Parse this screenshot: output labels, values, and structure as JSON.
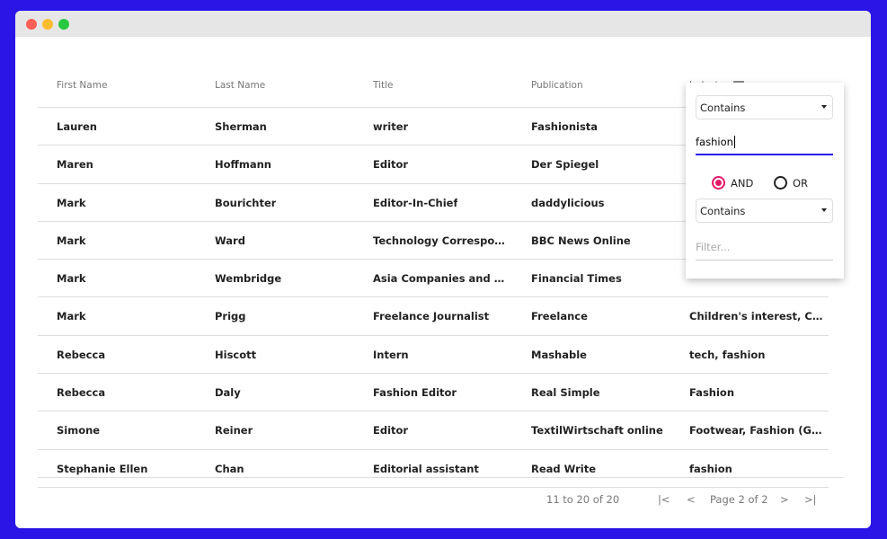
{
  "window": {
    "controls": [
      "close",
      "minimize",
      "maximize"
    ],
    "colors": {
      "close": "#fe5f57",
      "minimize": "#febc2e",
      "maximize": "#28c840"
    }
  },
  "columns": [
    "First Name",
    "Last Name",
    "Title",
    "Publication",
    "Industry"
  ],
  "rows": [
    [
      "Lauren",
      "Sherman",
      "writer",
      "Fashionista",
      ""
    ],
    [
      "Maren",
      "Hoffmann",
      "Editor",
      "Der Spiegel",
      ""
    ],
    [
      "Mark",
      "Bourichter",
      "Editor-In-Chief",
      "daddylicious",
      ""
    ],
    [
      "Mark",
      "Ward",
      "Technology Correspon...",
      "BBC News Online",
      ""
    ],
    [
      "Mark",
      "Wembridge",
      "Asia Companies and M...",
      "Financial Times",
      ""
    ],
    [
      "Mark",
      "Prigg",
      "Freelance Journalist",
      "Freelance",
      "Children's interest, Chil..."
    ],
    [
      "Rebecca",
      "Hiscott",
      "Intern",
      "Mashable",
      "tech, fashion"
    ],
    [
      "Rebecca",
      "Daly",
      "Fashion Editor",
      "Real Simple",
      "Fashion"
    ],
    [
      "Simone",
      "Reiner",
      "Editor",
      "TextilWirtschaft online",
      "Footwear, Fashion (Ge..."
    ],
    [
      "Stephanie Ellen",
      "Chan",
      "Editorial assistant",
      "Read Write",
      "fashion"
    ]
  ],
  "filter": {
    "condition1": "Contains",
    "value1": "fashion",
    "and_label": "AND",
    "or_label": "OR",
    "selected": "AND",
    "condition2": "Contains",
    "placeholder2": "Filter...",
    "accent": "#e5196b",
    "input_underline": "#2a14e6"
  },
  "pagination": {
    "summary": "11 to 20 of 20",
    "page_label": "Page 2 of 2"
  }
}
